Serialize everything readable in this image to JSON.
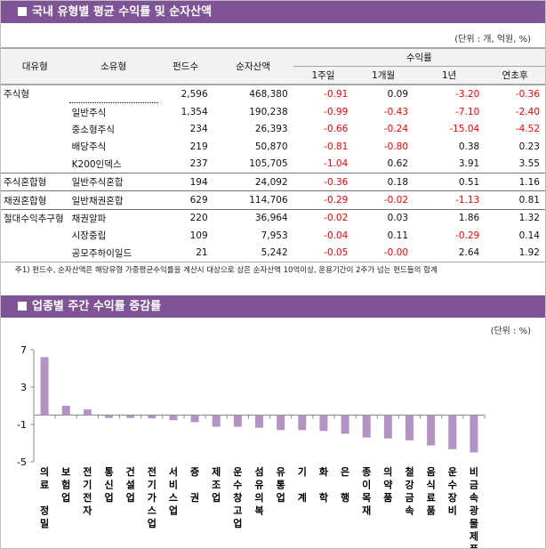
{
  "section1": {
    "title": "국내 유형별 평균 수익률 및 순자산액",
    "unit": "(단위 : 개, 억원, %)",
    "headers": {
      "major": "대유형",
      "minor": "소유형",
      "funds": "펀드수",
      "assets": "순자산액",
      "returns": "수익률",
      "w1": "1주일",
      "m1": "1개월",
      "y1": "1년",
      "ytd": "연초후"
    },
    "rows": [
      {
        "major": "주식형",
        "minor": "",
        "funds": "2,596",
        "assets": "468,380",
        "w1": "-0.91",
        "m1": "0.09",
        "y1": "-3.20",
        "ytd": "-0.36"
      },
      {
        "major": "",
        "minor": "일반주식",
        "funds": "1,354",
        "assets": "190,238",
        "w1": "-0.99",
        "m1": "-0.43",
        "y1": "-7.10",
        "ytd": "-2.40"
      },
      {
        "major": "",
        "minor": "중소형주식",
        "funds": "234",
        "assets": "26,393",
        "w1": "-0.66",
        "m1": "-0.24",
        "y1": "-15.04",
        "ytd": "-4.52"
      },
      {
        "major": "",
        "minor": "배당주식",
        "funds": "219",
        "assets": "50,870",
        "w1": "-0.81",
        "m1": "-0.80",
        "y1": "0.38",
        "ytd": "0.23"
      },
      {
        "major": "",
        "minor": "K200인덱스",
        "funds": "237",
        "assets": "105,705",
        "w1": "-1.04",
        "m1": "0.62",
        "y1": "3.91",
        "ytd": "3.55"
      },
      {
        "major": "주식혼합형",
        "minor": "일반주식혼합",
        "funds": "194",
        "assets": "24,092",
        "w1": "-0.36",
        "m1": "0.18",
        "y1": "0.51",
        "ytd": "1.16"
      },
      {
        "major": "채권혼합형",
        "minor": "일반채권혼합",
        "funds": "629",
        "assets": "114,706",
        "w1": "-0.29",
        "m1": "-0.02",
        "y1": "-1.13",
        "ytd": "0.81"
      },
      {
        "major": "절대수익추구형",
        "minor": "채권알파",
        "funds": "220",
        "assets": "36,964",
        "w1": "-0.02",
        "m1": "0.03",
        "y1": "1.86",
        "ytd": "1.32"
      },
      {
        "major": "",
        "minor": "시장중립",
        "funds": "109",
        "assets": "7,953",
        "w1": "-0.04",
        "m1": "0.11",
        "y1": "-0.29",
        "ytd": "0.14"
      },
      {
        "major": "",
        "minor": "공모주하이일드",
        "funds": "21",
        "assets": "5,242",
        "w1": "-0.05",
        "m1": "-0.00",
        "y1": "2.64",
        "ytd": "1.92"
      }
    ],
    "footnote": "주1) 펀드수, 순자산액은 해당유형 가중평균수익률을 계산시 대상으로 삼은 순자산액 10억이상, 운용기간이 2주가 넘는 펀드들의 합계"
  },
  "section2": {
    "title": "업종별 주간 수익률 증감률",
    "unit": "(단위 : %)"
  },
  "colors": {
    "header": "#7f5497",
    "bar": "#b392c4",
    "negative": "#ff0000"
  },
  "chart_data": {
    "type": "bar",
    "categories": [
      "의료 정밀",
      "보험업",
      "전기전자",
      "통신업",
      "건설업",
      "전기가스업",
      "서비스업",
      "증 권",
      "제조업",
      "운수창고업",
      "섬유의복",
      "유통업",
      "기 계",
      "화 학",
      "은 행",
      "종이목재",
      "의약품",
      "철강금속",
      "음식료품",
      "운수장비",
      "비금속광물제품"
    ],
    "values": [
      6.2,
      1.0,
      0.6,
      -0.3,
      -0.3,
      -0.35,
      -0.55,
      -0.75,
      -1.25,
      -1.25,
      -1.35,
      -1.6,
      -1.6,
      -1.7,
      -2.0,
      -2.4,
      -2.5,
      -2.7,
      -3.25,
      -3.65,
      -4.0
    ],
    "ylim": [
      -5,
      7
    ],
    "yticks": [
      "7",
      "3",
      "-1",
      "-5"
    ],
    "grid": false
  }
}
